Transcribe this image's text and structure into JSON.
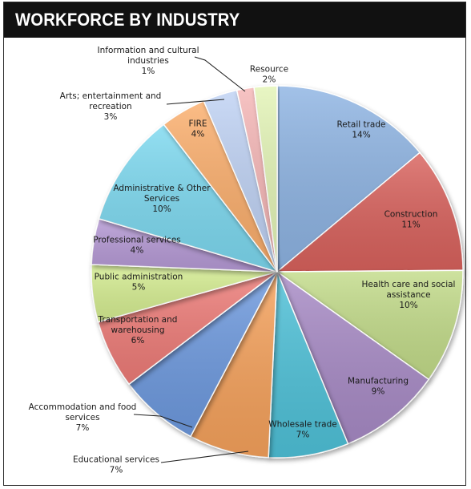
{
  "title": "WORKFORCE BY INDUSTRY",
  "chart_data": {
    "type": "pie",
    "title": "WORKFORCE BY INDUSTRY",
    "start_angle_deg": 0,
    "direction": "clockwise",
    "slices": [
      {
        "lines": [
          "Retail trade",
          "14%"
        ],
        "value": 14,
        "color": "#8EB4E3"
      },
      {
        "lines": [
          "Construction",
          "11%"
        ],
        "value": 11,
        "color": "#D9625D"
      },
      {
        "lines": [
          "Health care and social",
          "assistance",
          "10%"
        ],
        "value": 10,
        "color": "#C3DC8A"
      },
      {
        "lines": [
          "Manufacturing",
          "9%"
        ],
        "value": 9,
        "color": "#A88BC6"
      },
      {
        "lines": [
          "Wholesale trade",
          "7%"
        ],
        "value": 7,
        "color": "#4FC2D9"
      },
      {
        "lines": [
          "Educational services",
          "7%"
        ],
        "value": 7,
        "color": "#F6A25C"
      },
      {
        "lines": [
          "Accommodation and food",
          "services",
          "7%"
        ],
        "value": 7,
        "color": "#6E9ADF"
      },
      {
        "lines": [
          "Transportation and",
          "warehousing",
          "6%"
        ],
        "value": 6,
        "color": "#EE7B78"
      },
      {
        "lines": [
          "Public administration",
          "5%"
        ],
        "value": 5,
        "color": "#D6EE92"
      },
      {
        "lines": [
          "Professional services",
          "4%"
        ],
        "value": 4,
        "color": "#B69AD6"
      },
      {
        "lines": [
          "Administrative & Other",
          "Services",
          "10%"
        ],
        "value": 10,
        "color": "#7DD9F0"
      },
      {
        "lines": [
          "FIRE",
          "4%"
        ],
        "value": 4,
        "color": "#FBAE6C"
      },
      {
        "lines": [
          "Arts; entertainment and",
          "recreation",
          "3%"
        ],
        "value": 3,
        "color": "#BFD2F4"
      },
      {
        "lines": [
          "Information and cultural",
          "industries",
          "1%"
        ],
        "value": 1.5,
        "color": "#F5B6B6"
      },
      {
        "lines": [
          "Resource",
          "2%"
        ],
        "value": 2,
        "color": "#E3F4B6"
      }
    ]
  }
}
